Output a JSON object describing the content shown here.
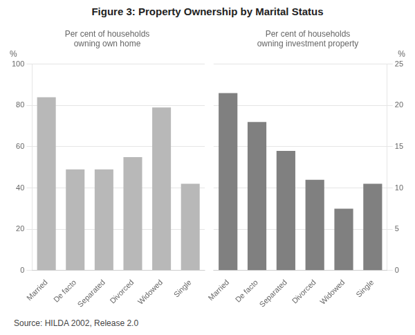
{
  "title": "Figure 3: Property Ownership by Marital Status",
  "source": "Source: HILDA 2002, Release 2.0",
  "chart_data": [
    {
      "type": "bar",
      "annotation": "Per cent of households\nowning own home",
      "ylabel": "%",
      "categories": [
        "Married",
        "De facto",
        "Separated",
        "Divorced",
        "Widowed",
        "Single"
      ],
      "values": [
        84,
        49,
        49,
        55,
        79,
        42
      ],
      "color": "#b8b8b8",
      "ylim": [
        0,
        100
      ],
      "yticks": [
        0,
        20,
        40,
        60,
        80,
        100
      ],
      "grid": true
    },
    {
      "type": "bar",
      "annotation": "Per cent of households\nowning investment property",
      "ylabel": "%",
      "categories": [
        "Married",
        "De facto",
        "Separated",
        "Divorced",
        "Widowed",
        "Single"
      ],
      "values": [
        21.5,
        18.0,
        14.5,
        11.0,
        7.5,
        10.5
      ],
      "color": "#808080",
      "ylim": [
        0,
        25
      ],
      "yticks": [
        0,
        5,
        10,
        15,
        20,
        25
      ],
      "grid": true
    }
  ]
}
